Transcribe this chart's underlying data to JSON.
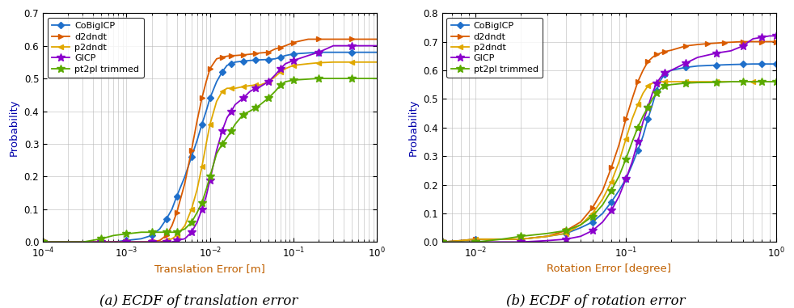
{
  "left": {
    "title": "(a) ECDF of translation error",
    "xlabel": "Translation Error [m]",
    "ylabel": "Probability",
    "xlim": [
      0.0001,
      1.0
    ],
    "ylim": [
      0,
      0.7
    ],
    "yticks": [
      0.0,
      0.1,
      0.2,
      0.3,
      0.4,
      0.5,
      0.6,
      0.7
    ],
    "series": [
      {
        "name": "CoBigICP",
        "color": "#1f6fca",
        "marker": "D",
        "markersize": 4,
        "x": [
          0.0001,
          0.0003,
          0.0005,
          0.0007,
          0.001,
          0.0015,
          0.002,
          0.0025,
          0.003,
          0.0035,
          0.004,
          0.005,
          0.006,
          0.007,
          0.008,
          0.009,
          0.01,
          0.012,
          0.014,
          0.016,
          0.018,
          0.02,
          0.025,
          0.03,
          0.035,
          0.04,
          0.05,
          0.06,
          0.07,
          0.08,
          0.1,
          0.15,
          0.2,
          0.3,
          0.5,
          1.0
        ],
        "y": [
          0.0,
          0.0,
          0.0,
          0.0,
          0.005,
          0.01,
          0.02,
          0.04,
          0.07,
          0.1,
          0.14,
          0.2,
          0.26,
          0.31,
          0.36,
          0.4,
          0.44,
          0.49,
          0.52,
          0.54,
          0.545,
          0.55,
          0.553,
          0.555,
          0.556,
          0.557,
          0.558,
          0.56,
          0.565,
          0.57,
          0.575,
          0.578,
          0.58,
          0.58,
          0.58,
          0.58
        ]
      },
      {
        "name": "d2dndt",
        "color": "#d95b00",
        "marker": ">",
        "markersize": 5,
        "x": [
          0.0001,
          0.0003,
          0.0005,
          0.0007,
          0.001,
          0.0015,
          0.002,
          0.0025,
          0.003,
          0.0035,
          0.004,
          0.005,
          0.006,
          0.007,
          0.008,
          0.009,
          0.01,
          0.012,
          0.014,
          0.016,
          0.018,
          0.02,
          0.025,
          0.03,
          0.035,
          0.04,
          0.05,
          0.06,
          0.07,
          0.08,
          0.1,
          0.15,
          0.2,
          0.3,
          0.5,
          1.0
        ],
        "y": [
          0.0,
          0.0,
          0.0,
          0.0,
          0.0,
          0.0,
          0.0,
          0.005,
          0.02,
          0.05,
          0.09,
          0.18,
          0.28,
          0.37,
          0.44,
          0.49,
          0.53,
          0.56,
          0.565,
          0.568,
          0.57,
          0.57,
          0.572,
          0.574,
          0.576,
          0.578,
          0.58,
          0.59,
          0.595,
          0.6,
          0.61,
          0.62,
          0.62,
          0.62,
          0.62,
          0.62
        ]
      },
      {
        "name": "p2dndt",
        "color": "#e0a800",
        "marker": "<",
        "markersize": 5,
        "x": [
          0.0001,
          0.0003,
          0.0005,
          0.0007,
          0.001,
          0.0015,
          0.002,
          0.0025,
          0.003,
          0.0035,
          0.004,
          0.005,
          0.006,
          0.007,
          0.008,
          0.009,
          0.01,
          0.012,
          0.014,
          0.016,
          0.018,
          0.02,
          0.025,
          0.03,
          0.035,
          0.04,
          0.05,
          0.06,
          0.07,
          0.08,
          0.1,
          0.15,
          0.2,
          0.3,
          0.5,
          1.0
        ],
        "y": [
          0.0,
          0.0,
          0.0,
          0.0,
          0.0,
          0.0,
          0.0,
          0.0,
          0.005,
          0.01,
          0.02,
          0.05,
          0.1,
          0.16,
          0.23,
          0.3,
          0.36,
          0.43,
          0.46,
          0.47,
          0.47,
          0.47,
          0.475,
          0.478,
          0.48,
          0.48,
          0.49,
          0.505,
          0.52,
          0.53,
          0.54,
          0.545,
          0.548,
          0.55,
          0.55,
          0.55
        ]
      },
      {
        "name": "GICP",
        "color": "#8b00cc",
        "marker": "*",
        "markersize": 7,
        "x": [
          0.0001,
          0.0003,
          0.0005,
          0.0007,
          0.001,
          0.0015,
          0.002,
          0.0025,
          0.003,
          0.0035,
          0.004,
          0.005,
          0.006,
          0.007,
          0.008,
          0.009,
          0.01,
          0.012,
          0.014,
          0.016,
          0.018,
          0.02,
          0.025,
          0.03,
          0.035,
          0.04,
          0.05,
          0.06,
          0.07,
          0.08,
          0.1,
          0.15,
          0.2,
          0.3,
          0.5,
          1.0
        ],
        "y": [
          0.0,
          0.0,
          0.0,
          0.0,
          0.0,
          0.0,
          0.0,
          0.0,
          0.0,
          0.0,
          0.005,
          0.01,
          0.03,
          0.06,
          0.1,
          0.14,
          0.19,
          0.28,
          0.34,
          0.38,
          0.4,
          0.42,
          0.44,
          0.46,
          0.47,
          0.475,
          0.49,
          0.51,
          0.53,
          0.545,
          0.555,
          0.57,
          0.58,
          0.6,
          0.6,
          0.6
        ]
      },
      {
        "name": "pt2pl trimmed",
        "color": "#5aaa00",
        "marker": "*",
        "markersize": 7,
        "x": [
          0.0001,
          0.0003,
          0.0005,
          0.0007,
          0.001,
          0.0015,
          0.002,
          0.0025,
          0.003,
          0.0035,
          0.004,
          0.005,
          0.006,
          0.007,
          0.008,
          0.009,
          0.01,
          0.012,
          0.014,
          0.016,
          0.018,
          0.02,
          0.025,
          0.03,
          0.035,
          0.04,
          0.05,
          0.06,
          0.07,
          0.08,
          0.1,
          0.15,
          0.2,
          0.3,
          0.5,
          1.0
        ],
        "y": [
          0.0,
          0.0,
          0.01,
          0.02,
          0.025,
          0.03,
          0.03,
          0.03,
          0.03,
          0.03,
          0.03,
          0.04,
          0.06,
          0.09,
          0.12,
          0.16,
          0.2,
          0.27,
          0.3,
          0.32,
          0.34,
          0.36,
          0.39,
          0.4,
          0.41,
          0.42,
          0.44,
          0.46,
          0.48,
          0.49,
          0.495,
          0.498,
          0.5,
          0.5,
          0.5,
          0.5
        ]
      }
    ]
  },
  "right": {
    "title": "(b) ECDF of rotation error",
    "xlabel": "Rotation Error [degree]",
    "ylabel": "Probability",
    "xlim": [
      0.006,
      1.0
    ],
    "ylim": [
      0,
      0.8
    ],
    "yticks": [
      0.0,
      0.1,
      0.2,
      0.3,
      0.4,
      0.5,
      0.6,
      0.7,
      0.8
    ],
    "series": [
      {
        "name": "CoBigICP",
        "color": "#1f6fca",
        "marker": "D",
        "markersize": 4,
        "x": [
          0.006,
          0.008,
          0.01,
          0.015,
          0.02,
          0.03,
          0.04,
          0.05,
          0.06,
          0.07,
          0.08,
          0.09,
          0.1,
          0.11,
          0.12,
          0.13,
          0.14,
          0.15,
          0.16,
          0.17,
          0.18,
          0.2,
          0.25,
          0.3,
          0.4,
          0.5,
          0.6,
          0.7,
          0.8,
          0.9,
          1.0
        ],
        "y": [
          0.0,
          0.005,
          0.01,
          0.01,
          0.01,
          0.02,
          0.03,
          0.05,
          0.07,
          0.1,
          0.14,
          0.18,
          0.22,
          0.27,
          0.32,
          0.37,
          0.43,
          0.48,
          0.53,
          0.565,
          0.585,
          0.6,
          0.61,
          0.615,
          0.618,
          0.62,
          0.621,
          0.622,
          0.622,
          0.622,
          0.622
        ]
      },
      {
        "name": "d2dndt",
        "color": "#d95b00",
        "marker": ">",
        "markersize": 5,
        "x": [
          0.006,
          0.008,
          0.01,
          0.015,
          0.02,
          0.03,
          0.04,
          0.05,
          0.06,
          0.07,
          0.08,
          0.09,
          0.1,
          0.11,
          0.12,
          0.13,
          0.14,
          0.15,
          0.16,
          0.17,
          0.18,
          0.2,
          0.25,
          0.3,
          0.35,
          0.4,
          0.45,
          0.5,
          0.6,
          0.7,
          0.8,
          0.9,
          1.0
        ],
        "y": [
          0.0,
          0.005,
          0.01,
          0.01,
          0.01,
          0.02,
          0.04,
          0.07,
          0.12,
          0.18,
          0.26,
          0.34,
          0.43,
          0.5,
          0.56,
          0.6,
          0.63,
          0.645,
          0.655,
          0.66,
          0.665,
          0.67,
          0.685,
          0.69,
          0.693,
          0.695,
          0.697,
          0.698,
          0.7,
          0.7,
          0.7,
          0.7,
          0.7
        ]
      },
      {
        "name": "p2dndt",
        "color": "#e0a800",
        "marker": "<",
        "markersize": 5,
        "x": [
          0.006,
          0.008,
          0.01,
          0.015,
          0.02,
          0.03,
          0.04,
          0.05,
          0.06,
          0.07,
          0.08,
          0.09,
          0.1,
          0.11,
          0.12,
          0.13,
          0.14,
          0.15,
          0.16,
          0.17,
          0.18,
          0.2,
          0.25,
          0.3,
          0.4,
          0.5,
          0.7,
          1.0
        ],
        "y": [
          0.0,
          0.005,
          0.01,
          0.01,
          0.01,
          0.02,
          0.03,
          0.06,
          0.1,
          0.15,
          0.21,
          0.28,
          0.36,
          0.43,
          0.48,
          0.52,
          0.545,
          0.555,
          0.558,
          0.56,
          0.56,
          0.56,
          0.56,
          0.56,
          0.56,
          0.56,
          0.56,
          0.56
        ]
      },
      {
        "name": "GICP",
        "color": "#8b00cc",
        "marker": "*",
        "markersize": 7,
        "x": [
          0.006,
          0.008,
          0.01,
          0.015,
          0.02,
          0.03,
          0.04,
          0.05,
          0.06,
          0.07,
          0.08,
          0.09,
          0.1,
          0.11,
          0.12,
          0.13,
          0.14,
          0.15,
          0.16,
          0.17,
          0.18,
          0.2,
          0.25,
          0.3,
          0.4,
          0.5,
          0.6,
          0.7,
          0.8,
          0.9,
          1.0
        ],
        "y": [
          0.0,
          0.0,
          0.0,
          0.0,
          0.0,
          0.005,
          0.01,
          0.02,
          0.04,
          0.07,
          0.11,
          0.16,
          0.22,
          0.28,
          0.35,
          0.42,
          0.47,
          0.52,
          0.555,
          0.575,
          0.59,
          0.6,
          0.625,
          0.645,
          0.66,
          0.668,
          0.685,
          0.71,
          0.715,
          0.72,
          0.72
        ]
      },
      {
        "name": "pt2pl trimmed",
        "color": "#5aaa00",
        "marker": "*",
        "markersize": 7,
        "x": [
          0.006,
          0.008,
          0.01,
          0.015,
          0.02,
          0.03,
          0.04,
          0.05,
          0.06,
          0.07,
          0.08,
          0.09,
          0.1,
          0.11,
          0.12,
          0.13,
          0.14,
          0.15,
          0.16,
          0.17,
          0.18,
          0.2,
          0.25,
          0.3,
          0.4,
          0.5,
          0.6,
          0.7,
          0.8,
          0.9,
          1.0
        ],
        "y": [
          0.0,
          0.0,
          0.0,
          0.01,
          0.02,
          0.03,
          0.04,
          0.06,
          0.09,
          0.13,
          0.18,
          0.23,
          0.29,
          0.35,
          0.4,
          0.44,
          0.47,
          0.5,
          0.52,
          0.535,
          0.545,
          0.55,
          0.555,
          0.557,
          0.558,
          0.56,
          0.56,
          0.56,
          0.56,
          0.56,
          0.56
        ]
      }
    ]
  },
  "bg_color": "#ffffff",
  "grid_color": "#b8b8b8",
  "linewidth": 1.3,
  "caption_fontsize": 12
}
